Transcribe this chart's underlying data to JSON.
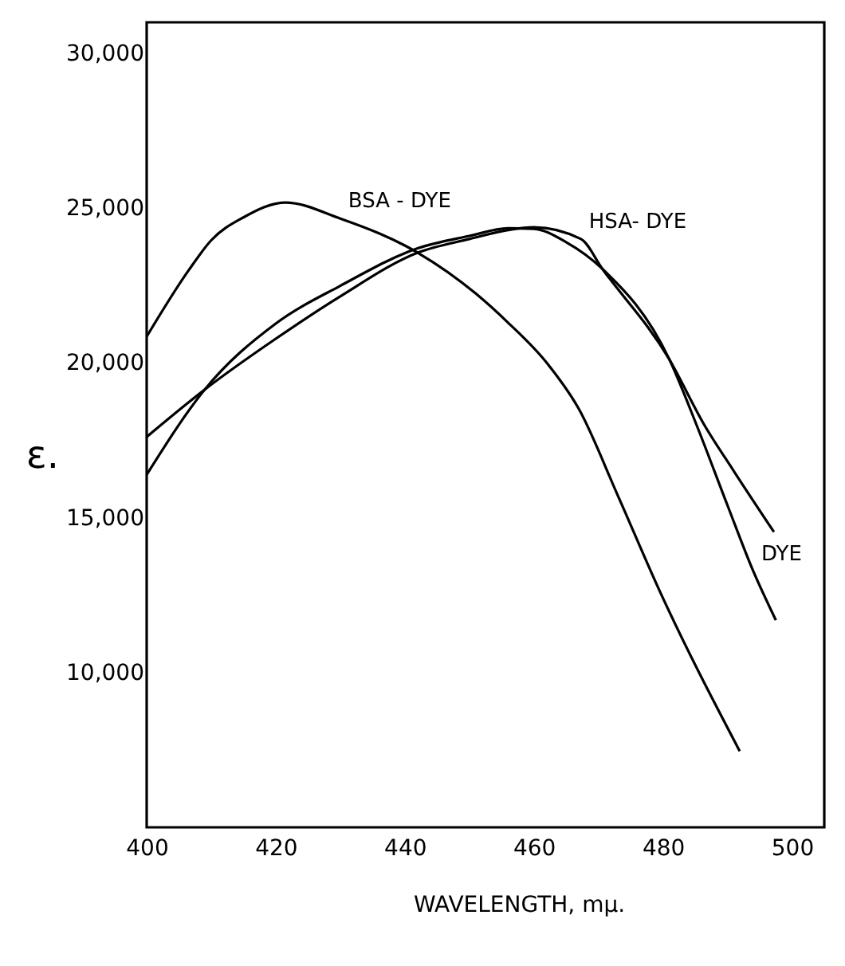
{
  "chart_data": {
    "type": "line",
    "xlabel": "WAVELENGTH, mμ.",
    "ylabel": "ε.",
    "xlim": [
      400,
      505
    ],
    "xticks": [
      400,
      420,
      440,
      460,
      480,
      500
    ],
    "ylim": [
      5000,
      31000
    ],
    "yticks": [
      {
        "value": 10000,
        "label": "10,000"
      },
      {
        "value": 15000,
        "label": "15,000"
      },
      {
        "value": 20000,
        "label": "20,000"
      },
      {
        "value": 25000,
        "label": "25,000"
      },
      {
        "value": 30000,
        "label": "30,000"
      }
    ],
    "grid": false,
    "series": [
      {
        "color": "#000000",
        "x": [
          400,
          406.5,
          410,
          415,
          421.5,
          430,
          442,
          451,
          456,
          462,
          467,
          473,
          479.5,
          491.9
        ],
        "values": [
          20850,
          22990,
          23960,
          24700,
          25180,
          24660,
          23560,
          22240,
          21300,
          20000,
          18500,
          15720,
          12630,
          7460
        ]
      },
      {
        "color": "#000000",
        "x": [
          400,
          409,
          420,
          430,
          442,
          450,
          456,
          460,
          467.3,
          470.6,
          481,
          486.4,
          491,
          497.2
        ],
        "values": [
          17610,
          19140,
          20780,
          22150,
          23560,
          24000,
          24290,
          24380,
          24000,
          23040,
          20110,
          18000,
          16500,
          14540
        ]
      },
      {
        "color": "#000000",
        "x": [
          400,
          409,
          420,
          430,
          442,
          450,
          456,
          460,
          465,
          470.6,
          481,
          485.2,
          490,
          494,
          497.5
        ],
        "values": [
          16390,
          19140,
          21270,
          22490,
          23700,
          24100,
          24350,
          24330,
          23900,
          23040,
          20110,
          18000,
          15400,
          13270,
          11690
        ]
      }
    ],
    "annotations": [
      {
        "text": "BSA - DYE",
        "x": 430,
        "y": 24660
      },
      {
        "text": "HSA- DYE",
        "x": 467.3,
        "y": 24000
      },
      {
        "text": "DYE",
        "x": 494,
        "y": 13270
      }
    ]
  }
}
